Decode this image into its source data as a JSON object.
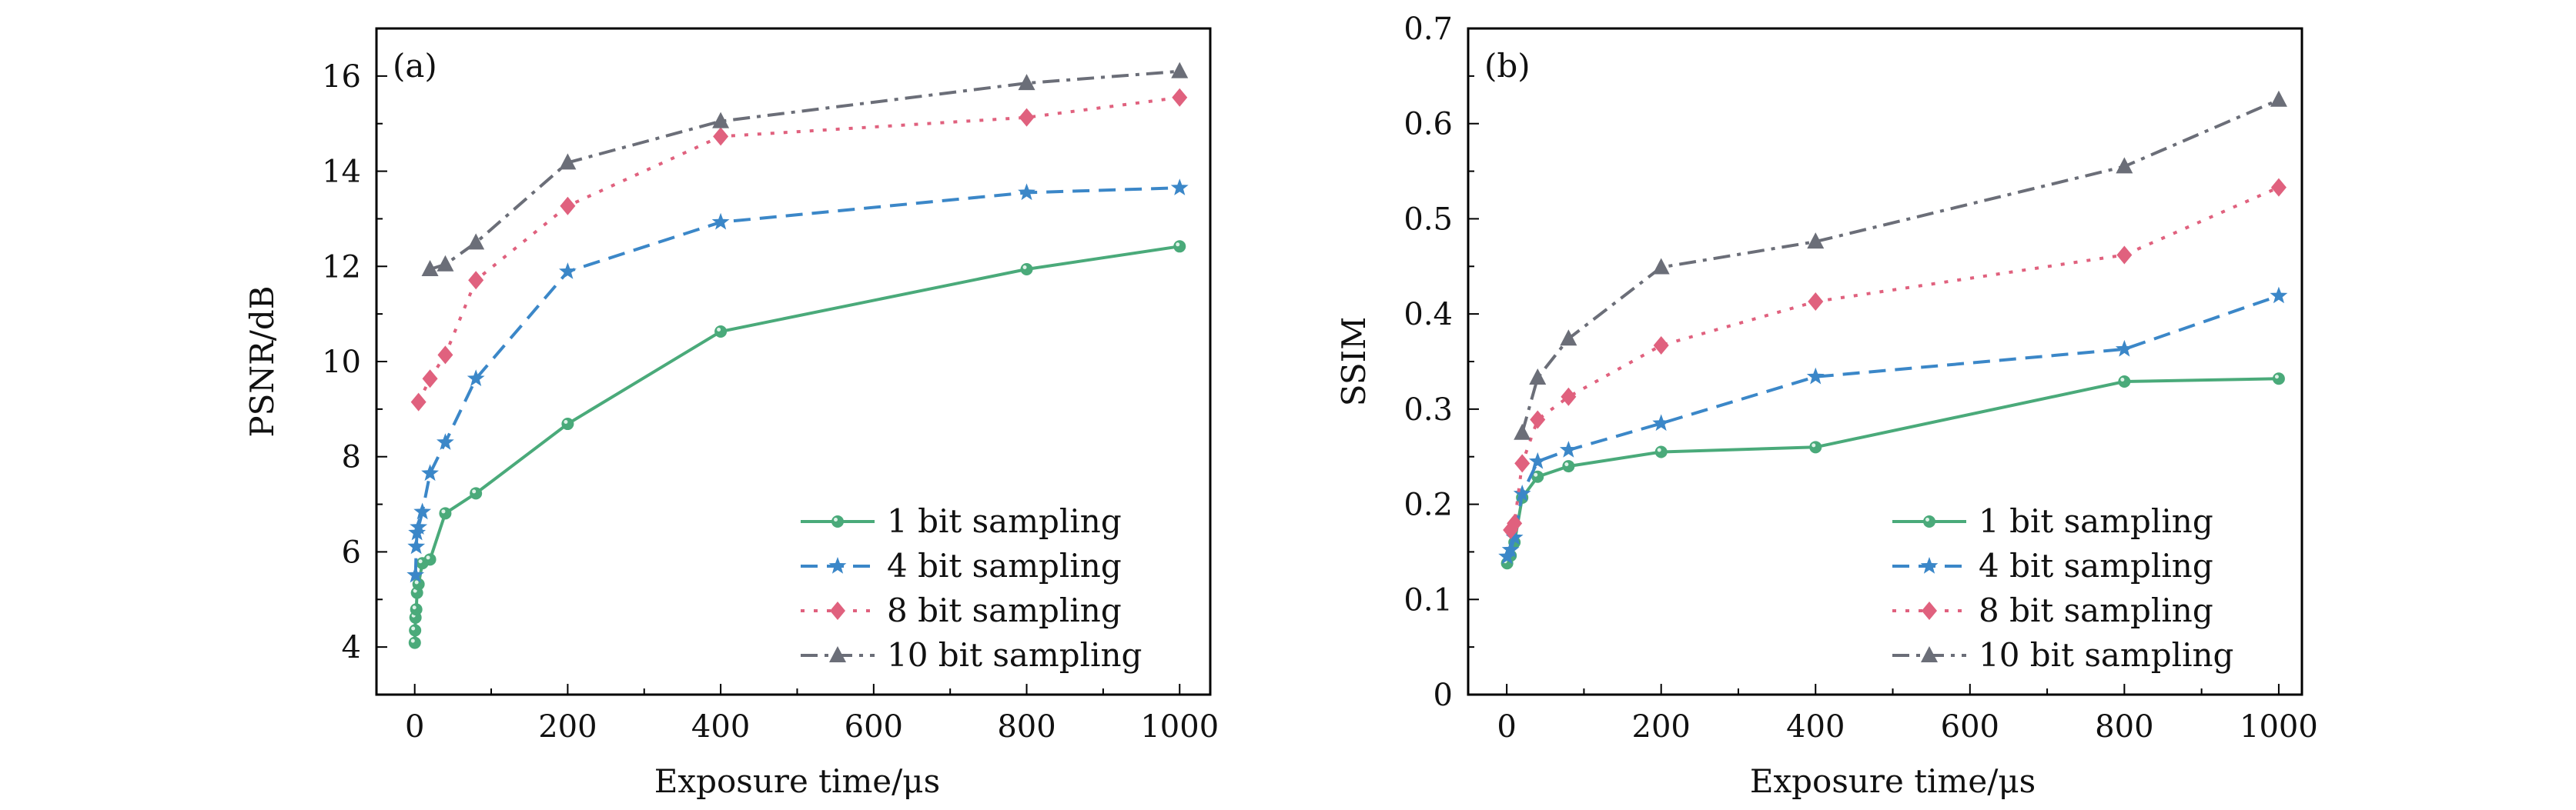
{
  "chart_data": [
    {
      "type": "line",
      "panel_label": "(a)",
      "title": "",
      "xlabel": "Exposure time/μs",
      "ylabel": "PSNR/dB",
      "xlim": [
        -50,
        1040
      ],
      "ylim": [
        3,
        17
      ],
      "xticks": [
        0,
        200,
        400,
        600,
        800,
        1000
      ],
      "xtick_labels": [
        "0",
        "200",
        "400",
        "600",
        "800",
        "1000"
      ],
      "xminor": [
        100,
        300,
        500,
        700,
        900
      ],
      "yticks": [
        4,
        6,
        8,
        10,
        12,
        14,
        16
      ],
      "ytick_labels": [
        "4",
        "6",
        "8",
        "10",
        "12",
        "14",
        "16"
      ],
      "yminor": [
        5,
        7,
        9,
        11,
        13,
        15
      ],
      "grid": false,
      "legend_position": "bottom-right",
      "series": [
        {
          "name": "1 bit sampling",
          "color": "#4aaa7a",
          "dash": "solid",
          "marker": "circle",
          "x": [
            0.1,
            0.5,
            1,
            2,
            3,
            5,
            10,
            20,
            40,
            80,
            200,
            400,
            800,
            1000
          ],
          "y": [
            4.09,
            4.35,
            4.62,
            4.79,
            5.14,
            5.32,
            5.76,
            5.84,
            6.81,
            7.23,
            8.69,
            10.63,
            11.94,
            12.42
          ]
        },
        {
          "name": "4 bit sampling",
          "color": "#3b87c8",
          "dash": "dashed",
          "marker": "star",
          "x": [
            1,
            2,
            3,
            5,
            10,
            20,
            40,
            80,
            200,
            400,
            800,
            1000
          ],
          "y": [
            5.51,
            6.11,
            6.4,
            6.52,
            6.84,
            7.65,
            8.3,
            9.64,
            11.89,
            12.93,
            13.55,
            13.65
          ]
        },
        {
          "name": "8 bit sampling",
          "color": "#e0617e",
          "dash": "dotted",
          "marker": "diamond",
          "x": [
            5,
            20,
            40,
            80,
            200,
            400,
            800,
            1000
          ],
          "y": [
            9.15,
            9.64,
            10.14,
            11.71,
            13.27,
            14.73,
            15.13,
            15.55
          ]
        },
        {
          "name": "10 bit sampling",
          "color": "#6b6e78",
          "dash": "dashdot",
          "marker": "triangle",
          "x": [
            20,
            40,
            80,
            200,
            400,
            800,
            1000
          ],
          "y": [
            11.94,
            12.04,
            12.5,
            14.18,
            15.05,
            15.85,
            16.1
          ]
        }
      ]
    },
    {
      "type": "line",
      "panel_label": "(b)",
      "title": "",
      "xlabel": "Exposure time/μs",
      "ylabel": "SSIM",
      "xlim": [
        -50,
        1030
      ],
      "ylim": [
        0,
        0.7
      ],
      "xticks": [
        0,
        200,
        400,
        600,
        800,
        1000
      ],
      "xtick_labels": [
        "0",
        "200",
        "400",
        "600",
        "800",
        "1000"
      ],
      "xminor": [
        100,
        300,
        500,
        700,
        900
      ],
      "yticks": [
        0,
        0.1,
        0.2,
        0.3,
        0.4,
        0.5,
        0.6,
        0.7
      ],
      "ytick_labels": [
        "0",
        "0.1",
        "0.2",
        "0.3",
        "0.4",
        "0.5",
        "0.6",
        "0.7"
      ],
      "yminor": [
        0.05,
        0.15,
        0.25,
        0.35,
        0.45,
        0.55,
        0.65
      ],
      "grid": false,
      "legend_position": "bottom-right",
      "series": [
        {
          "name": "1 bit sampling",
          "color": "#4aaa7a",
          "dash": "solid",
          "marker": "circle",
          "x": [
            0.5,
            5,
            10,
            20,
            40,
            80,
            200,
            400,
            800,
            1000
          ],
          "y": [
            0.138,
            0.146,
            0.16,
            0.207,
            0.229,
            0.24,
            0.255,
            0.26,
            0.329,
            0.332
          ]
        },
        {
          "name": "4 bit sampling",
          "color": "#3b87c8",
          "dash": "dashed",
          "marker": "star",
          "x": [
            0.5,
            5,
            10,
            20,
            40,
            80,
            200,
            400,
            800,
            1000
          ],
          "y": [
            0.145,
            0.152,
            0.165,
            0.211,
            0.245,
            0.257,
            0.285,
            0.334,
            0.363,
            0.419
          ]
        },
        {
          "name": "8 bit sampling",
          "color": "#e0617e",
          "dash": "dotted",
          "marker": "diamond",
          "x": [
            5,
            10,
            20,
            40,
            80,
            200,
            400,
            800,
            1000
          ],
          "y": [
            0.173,
            0.18,
            0.243,
            0.289,
            0.313,
            0.367,
            0.413,
            0.462,
            0.533
          ]
        },
        {
          "name": "10 bit sampling",
          "color": "#6b6e78",
          "dash": "dashdot",
          "marker": "triangle",
          "x": [
            20,
            40,
            80,
            200,
            400,
            800,
            1000
          ],
          "y": [
            0.275,
            0.333,
            0.374,
            0.449,
            0.476,
            0.555,
            0.625
          ]
        }
      ]
    }
  ]
}
